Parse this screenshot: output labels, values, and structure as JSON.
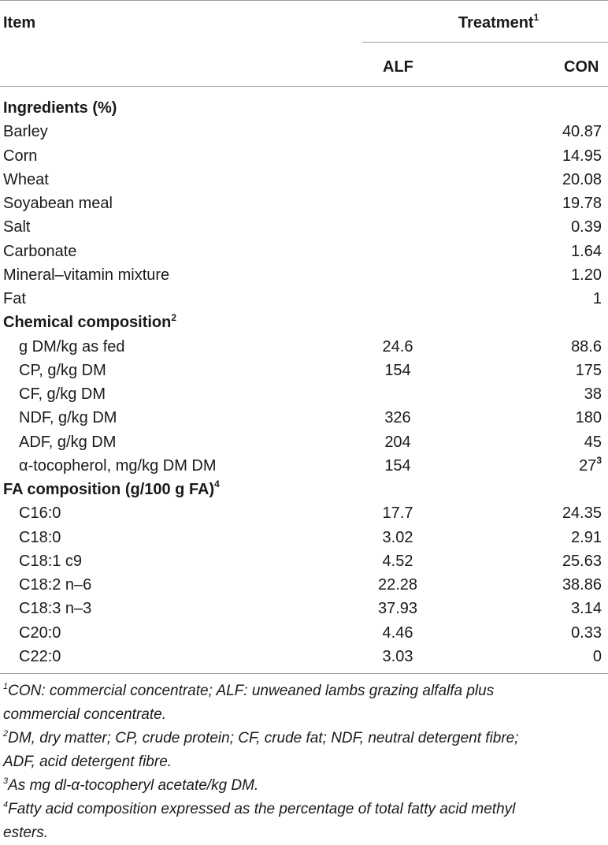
{
  "header": {
    "item": "Item",
    "treatment": "Treatment",
    "treatment_sup": "1",
    "col_alf": "ALF",
    "col_con": "CON"
  },
  "rows": [
    {
      "label": "Ingredients (%)",
      "section": true,
      "alf": "",
      "con": ""
    },
    {
      "label": "Barley",
      "alf": "",
      "con": "40.87"
    },
    {
      "label": "Corn",
      "alf": "",
      "con": "14.95"
    },
    {
      "label": "Wheat",
      "alf": "",
      "con": "20.08"
    },
    {
      "label": "Soyabean meal",
      "alf": "",
      "con": "19.78"
    },
    {
      "label": "Salt",
      "alf": "",
      "con": "0.39"
    },
    {
      "label": "Carbonate",
      "alf": "",
      "con": "1.64"
    },
    {
      "label": "Mineral–vitamin mixture",
      "alf": "",
      "con": "1.20"
    },
    {
      "label": "Fat",
      "alf": "",
      "con": "1"
    },
    {
      "label": "Chemical composition",
      "sup": "2",
      "section": true,
      "alf": "",
      "con": ""
    },
    {
      "label": "g DM/kg as fed",
      "indent": true,
      "alf": "24.6",
      "con": "88.6"
    },
    {
      "label": "CP, g/kg DM",
      "indent": true,
      "alf": "154",
      "con": "175"
    },
    {
      "label": "CF, g/kg DM",
      "indent": true,
      "alf": "",
      "con": "38"
    },
    {
      "label": "NDF, g/kg DM",
      "indent": true,
      "alf": "326",
      "con": "180"
    },
    {
      "label": "ADF, g/kg DM",
      "indent": true,
      "alf": "204",
      "con": "45"
    },
    {
      "label": "α-tocopherol, mg/kg DM DM",
      "indent": true,
      "alf": "154",
      "con": "27",
      "con_sup": "3"
    },
    {
      "label": "FA composition (g/100 g FA)",
      "sup": "4",
      "section": true,
      "alf": "",
      "con": ""
    },
    {
      "label": "C16:0",
      "indent": true,
      "alf": "17.7",
      "con": "24.35"
    },
    {
      "label": "C18:0",
      "indent": true,
      "alf": "3.02",
      "con": "2.91"
    },
    {
      "label": "C18:1 c9",
      "indent": true,
      "alf": "4.52",
      "con": "25.63"
    },
    {
      "label": "C18:2 n–6",
      "indent": true,
      "alf": "22.28",
      "con": "38.86"
    },
    {
      "label": "C18:3 n–3",
      "indent": true,
      "alf": "37.93",
      "con": "3.14"
    },
    {
      "label": "C20:0",
      "indent": true,
      "alf": "4.46",
      "con": "0.33"
    },
    {
      "label": "C22:0",
      "indent": true,
      "alf": "3.03",
      "con": "0"
    }
  ],
  "footnotes": [
    {
      "mark": "1",
      "lines": [
        "CON: commercial concentrate; ALF: unweaned lambs grazing alfalfa plus",
        "commercial concentrate."
      ]
    },
    {
      "mark": "2",
      "lines": [
        "DM, dry matter; CP, crude protein; CF, crude fat; NDF, neutral detergent fibre;",
        "ADF, acid detergent fibre."
      ]
    },
    {
      "mark": "3",
      "lines": [
        "As mg dl-α-tocopheryl acetate/kg DM."
      ]
    },
    {
      "mark": "4",
      "lines": [
        "Fatty acid composition expressed as the percentage of total fatty acid methyl",
        "esters."
      ]
    }
  ]
}
